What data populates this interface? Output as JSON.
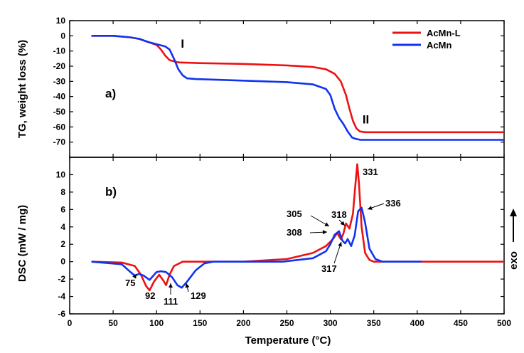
{
  "chart_data": [
    {
      "type": "line",
      "panel_label": "a)",
      "xlabel": "Temperature (°C)",
      "ylabel": "TG, weight loss (%)",
      "xlim": [
        0,
        500
      ],
      "ylim": [
        -80,
        10
      ],
      "yticks": [
        10,
        0,
        -10,
        -20,
        -30,
        -40,
        -50,
        -60,
        -70
      ],
      "legend_position": "top-right",
      "annotations": [
        {
          "text": "I",
          "x": 128,
          "y": -5
        },
        {
          "text": "II",
          "x": 337,
          "y": -55
        }
      ],
      "series": [
        {
          "name": "AcMn-L",
          "color": "#ee1111",
          "x": [
            25,
            50,
            70,
            80,
            90,
            100,
            105,
            110,
            115,
            125,
            150,
            200,
            250,
            280,
            295,
            305,
            312,
            318,
            322,
            326,
            330,
            334,
            340,
            400,
            450,
            500
          ],
          "y": [
            0,
            0,
            -1,
            -2,
            -4,
            -6,
            -9,
            -13,
            -16,
            -17.5,
            -18,
            -18.5,
            -19.5,
            -20.5,
            -22,
            -25,
            -30,
            -39,
            -48,
            -56,
            -61,
            -63,
            -63.5,
            -63.5,
            -63.5,
            -63.5
          ]
        },
        {
          "name": "AcMn",
          "color": "#1133ee",
          "x": [
            25,
            50,
            70,
            80,
            90,
            100,
            110,
            115,
            120,
            125,
            130,
            135,
            145,
            200,
            250,
            280,
            295,
            300,
            305,
            310,
            315,
            320,
            325,
            330,
            335,
            345,
            400,
            450,
            500
          ],
          "y": [
            0,
            0,
            -1,
            -2,
            -4,
            -5.5,
            -7,
            -9,
            -15,
            -22,
            -26,
            -28,
            -28.5,
            -29.5,
            -30.5,
            -32,
            -35,
            -39,
            -48,
            -54,
            -58,
            -63,
            -67,
            -68,
            -68.5,
            -68.5,
            -68.5,
            -68.5,
            -68.5
          ]
        }
      ]
    },
    {
      "type": "line",
      "panel_label": "b)",
      "xlabel": "Temperature (°C)",
      "ylabel": "DSC (mW / mg)",
      "side_label": "exo",
      "xlim": [
        0,
        500
      ],
      "ylim": [
        -6,
        12
      ],
      "xticks": [
        0,
        50,
        100,
        150,
        200,
        250,
        300,
        350,
        400,
        450,
        500
      ],
      "yticks": [
        10,
        8,
        6,
        4,
        2,
        0,
        -2,
        -4,
        -6
      ],
      "annotations": [
        {
          "text": "75",
          "x": 75
        },
        {
          "text": "92",
          "x": 92
        },
        {
          "text": "111",
          "x": 111
        },
        {
          "text": "129",
          "x": 129
        },
        {
          "text": "305",
          "x": 305
        },
        {
          "text": "308",
          "x": 308
        },
        {
          "text": "317",
          "x": 317
        },
        {
          "text": "318",
          "x": 318
        },
        {
          "text": "331",
          "x": 331
        },
        {
          "text": "336",
          "x": 336
        }
      ],
      "series": [
        {
          "name": "AcMn-L",
          "color": "#ee1111",
          "x": [
            25,
            60,
            75,
            82,
            88,
            92,
            97,
            103,
            108,
            111,
            115,
            120,
            130,
            150,
            200,
            250,
            280,
            295,
            303,
            308,
            312,
            315,
            318,
            322,
            326,
            329,
            331,
            333,
            336,
            340,
            345,
            350,
            400,
            450,
            500
          ],
          "y": [
            0,
            -0.1,
            -0.5,
            -1.5,
            -2.8,
            -3.3,
            -2.3,
            -1.5,
            -2.2,
            -2.7,
            -1.5,
            -0.5,
            0,
            0,
            0,
            0.3,
            1,
            1.8,
            2.6,
            3.3,
            2.6,
            3.2,
            4.4,
            3.8,
            5.5,
            9,
            11.2,
            9,
            4,
            1,
            0.2,
            0,
            0,
            0,
            0
          ]
        },
        {
          "name": "AcMn",
          "color": "#1133ee",
          "x": [
            25,
            60,
            70,
            75,
            80,
            85,
            92,
            100,
            105,
            111,
            118,
            124,
            129,
            135,
            145,
            155,
            165,
            245,
            280,
            295,
            300,
            305,
            310,
            314,
            317,
            320,
            324,
            328,
            332,
            336,
            340,
            345,
            352,
            360,
            405
          ],
          "y": [
            0,
            -0.3,
            -1.2,
            -1.6,
            -1.4,
            -1.6,
            -2.1,
            -1.2,
            -1.1,
            -1.2,
            -1.8,
            -2.7,
            -3,
            -2.3,
            -1,
            -0.2,
            0,
            0,
            0.4,
            1.2,
            2,
            3.1,
            3.5,
            2.4,
            2.1,
            2.6,
            1.8,
            3,
            5.8,
            6.2,
            4.5,
            1.5,
            0.3,
            0,
            0
          ]
        }
      ]
    }
  ]
}
